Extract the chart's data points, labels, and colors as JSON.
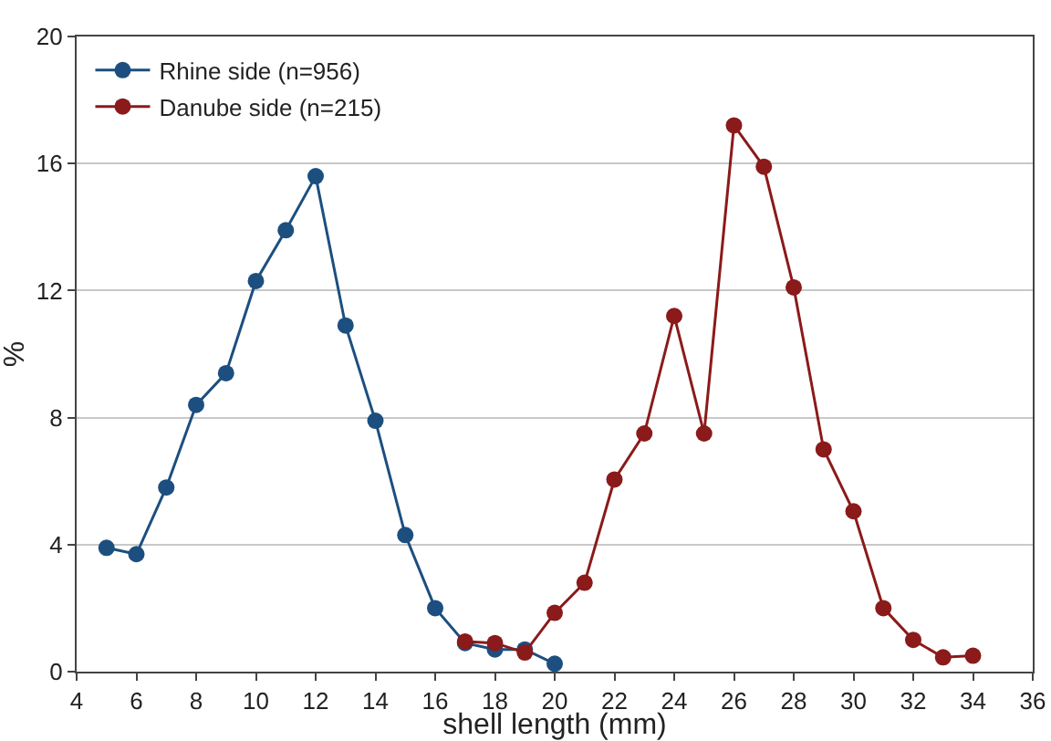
{
  "chart_data": {
    "type": "line",
    "xlabel": "shell length (mm)",
    "ylabel": "%",
    "xlim": [
      4,
      36
    ],
    "xticks": [
      4,
      6,
      8,
      10,
      12,
      14,
      16,
      18,
      20,
      22,
      24,
      26,
      28,
      30,
      32,
      34,
      36
    ],
    "ylim": [
      0,
      20
    ],
    "yticks": [
      0,
      4,
      8,
      12,
      16,
      20
    ],
    "grid": "y",
    "legend": "top left",
    "marker": "circle",
    "line_style": "solid",
    "series": [
      {
        "name": "Rhine side (n=956)",
        "color": "#1c4f7f",
        "x": [
          5,
          6,
          7,
          8,
          9,
          10,
          11,
          12,
          13,
          14,
          15,
          16,
          17,
          18,
          19,
          20
        ],
        "values": [
          3.9,
          3.7,
          5.8,
          8.4,
          9.4,
          12.3,
          13.9,
          15.6,
          10.9,
          7.9,
          4.3,
          2.0,
          0.9,
          0.7,
          0.7,
          0.25
        ]
      },
      {
        "name": "Danube side (n=215)",
        "color": "#8b1a1a",
        "x": [
          17,
          18,
          19,
          20,
          21,
          22,
          23,
          24,
          25,
          26,
          27,
          28,
          29,
          30,
          31,
          32,
          33,
          34
        ],
        "values": [
          0.95,
          0.9,
          0.6,
          1.85,
          2.8,
          6.05,
          7.5,
          11.2,
          7.5,
          17.2,
          15.9,
          12.1,
          7.0,
          5.05,
          2.0,
          1.0,
          0.45,
          0.5
        ]
      }
    ]
  }
}
